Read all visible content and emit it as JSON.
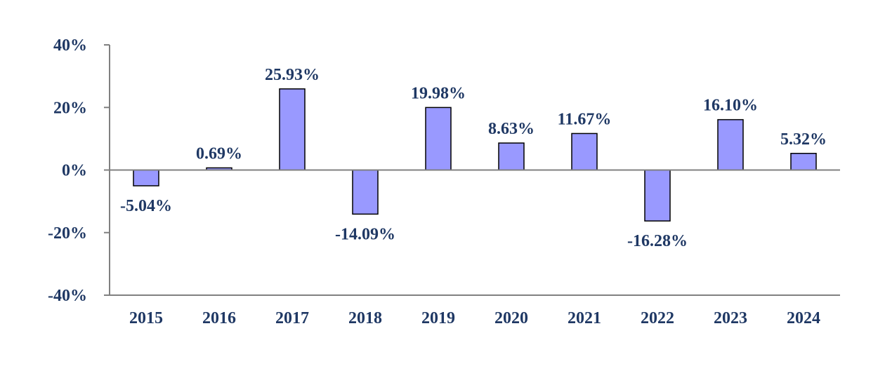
{
  "chart_data": {
    "type": "bar",
    "categories": [
      "2015",
      "2016",
      "2017",
      "2018",
      "2019",
      "2020",
      "2021",
      "2022",
      "2023",
      "2024"
    ],
    "values": [
      -5.04,
      0.69,
      25.93,
      -14.09,
      19.98,
      8.63,
      11.67,
      -16.28,
      16.1,
      5.32
    ],
    "value_labels": [
      "-5.04%",
      "0.69%",
      "25.93%",
      "-14.09%",
      "19.98%",
      "8.63%",
      "11.67%",
      "-16.28%",
      "16.10%",
      "5.32%"
    ],
    "ylim": [
      -40,
      40
    ],
    "yticks": [
      40,
      20,
      0,
      -20,
      -40
    ],
    "ytick_labels": [
      "40%",
      "20%",
      "0%",
      "-20%",
      "-40%"
    ],
    "title": "",
    "xlabel": "",
    "ylabel": "",
    "grid": false,
    "legend": "none",
    "colors": {
      "bar_fill": "#9999ff",
      "bar_stroke": "#000000",
      "text": "#1f3864",
      "axis": "#808080"
    }
  }
}
